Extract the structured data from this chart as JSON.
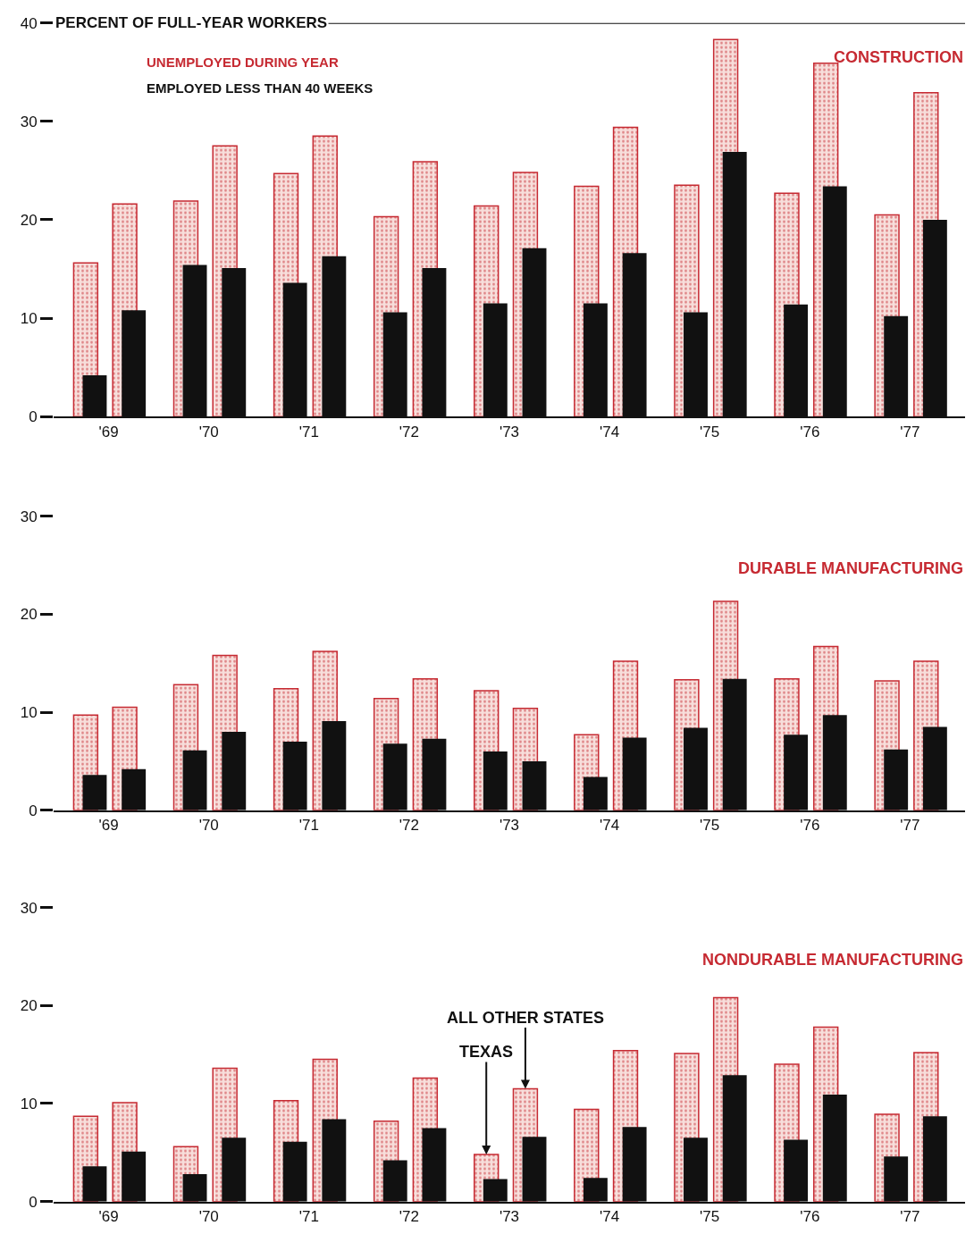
{
  "chart_data": [
    {
      "type": "bar",
      "title": "CONSTRUCTION",
      "ylabel": "PERCENT OF FULL-YEAR WORKERS",
      "categories": [
        "'69",
        "'70",
        "'71",
        "'72",
        "'73",
        "'74",
        "'75",
        "'76",
        "'77"
      ],
      "ylim": [
        0,
        40
      ],
      "yticks": [
        0,
        10,
        20,
        30,
        40
      ],
      "legend": "top left",
      "series": [
        {
          "name": "UNEMPLOYED DURING YEAR",
          "color": "#c62a32",
          "values": [
            15.6,
            21.9,
            24.7,
            20.3,
            21.4,
            23.4,
            23.5,
            22.7,
            20.5
          ]
        },
        {
          "name": "EMPLOYED LESS THAN 40 WEEKS",
          "color": "#111111",
          "values": [
            4.2,
            15.4,
            13.6,
            10.6,
            11.5,
            11.5,
            10.6,
            11.4,
            10.2
          ]
        },
        {
          "color": "#c62a32",
          "values": [
            21.6,
            27.5,
            28.5,
            25.9,
            24.8,
            29.4,
            38.3,
            35.9,
            32.9
          ]
        },
        {
          "color": "#111111",
          "values": [
            10.8,
            15.1,
            16.3,
            15.1,
            17.1,
            16.6,
            26.9,
            23.4,
            20.0
          ]
        }
      ]
    },
    {
      "type": "bar",
      "title": "DURABLE MANUFACTURING",
      "categories": [
        "'69",
        "'70",
        "'71",
        "'72",
        "'73",
        "'74",
        "'75",
        "'76",
        "'77"
      ],
      "ylim": [
        0,
        30
      ],
      "yticks": [
        0,
        10,
        20,
        30
      ],
      "series": [
        {
          "color": "#c62a32",
          "values": [
            9.7,
            12.8,
            12.4,
            11.4,
            12.2,
            7.7,
            13.3,
            13.4,
            13.2
          ]
        },
        {
          "color": "#111111",
          "values": [
            3.6,
            6.1,
            7.0,
            6.8,
            6.0,
            3.4,
            8.4,
            7.7,
            6.2
          ]
        },
        {
          "color": "#c62a32",
          "values": [
            10.5,
            15.8,
            16.2,
            13.4,
            10.4,
            15.2,
            21.3,
            16.7,
            15.2
          ]
        },
        {
          "color": "#111111",
          "values": [
            4.2,
            8.0,
            9.1,
            7.3,
            5.0,
            7.4,
            13.4,
            9.7,
            8.5
          ]
        }
      ]
    },
    {
      "type": "bar",
      "title": "NONDURABLE MANUFACTURING",
      "categories": [
        "'69",
        "'70",
        "'71",
        "'72",
        "'73",
        "'74",
        "'75",
        "'76",
        "'77"
      ],
      "ylim": [
        0,
        30
      ],
      "yticks": [
        0,
        10,
        20,
        30
      ],
      "annotations": [
        {
          "text": "ALL OTHER STATES",
          "y": 11.5
        },
        {
          "text": "TEXAS",
          "y": 4.8
        }
      ],
      "series": [
        {
          "color": "#c62a32",
          "values": [
            8.7,
            5.6,
            10.3,
            8.2,
            4.8,
            9.4,
            15.1,
            14.0,
            8.9
          ]
        },
        {
          "color": "#111111",
          "values": [
            3.6,
            2.8,
            6.1,
            4.2,
            2.3,
            2.4,
            6.5,
            6.3,
            4.6
          ]
        },
        {
          "color": "#c62a32",
          "values": [
            10.1,
            13.6,
            14.5,
            12.6,
            11.5,
            15.4,
            20.8,
            17.8,
            15.2
          ]
        },
        {
          "color": "#111111",
          "values": [
            5.1,
            6.5,
            8.4,
            7.5,
            6.6,
            7.6,
            12.9,
            10.9,
            8.7
          ]
        }
      ]
    }
  ]
}
